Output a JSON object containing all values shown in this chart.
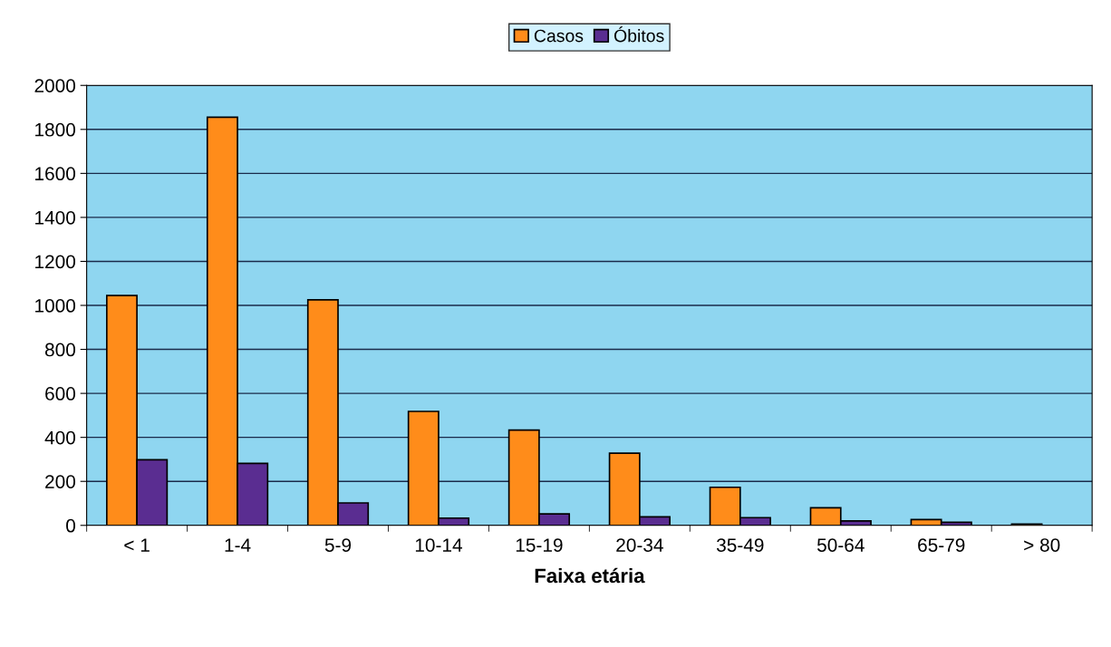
{
  "chart_data": {
    "type": "bar",
    "xlabel": "Faixa etária",
    "categories": [
      "< 1",
      "1-4",
      "5-9",
      "10-14",
      "15-19",
      "20-34",
      "35-49",
      "50-64",
      "65-79",
      "> 80"
    ],
    "series": [
      {
        "name": "Casos",
        "color": "#ff8c1a",
        "values": [
          1045,
          1855,
          1025,
          518,
          433,
          328,
          173,
          80,
          26,
          6
        ]
      },
      {
        "name": "Óbitos",
        "color": "#5a2d91",
        "values": [
          298,
          282,
          102,
          33,
          52,
          39,
          35,
          20,
          14,
          null
        ]
      }
    ],
    "ylim": [
      0,
      2000
    ],
    "yticks": [
      0,
      200,
      400,
      600,
      800,
      1000,
      1200,
      1400,
      1600,
      1800,
      2000
    ],
    "grid": "y",
    "legend": "top"
  }
}
